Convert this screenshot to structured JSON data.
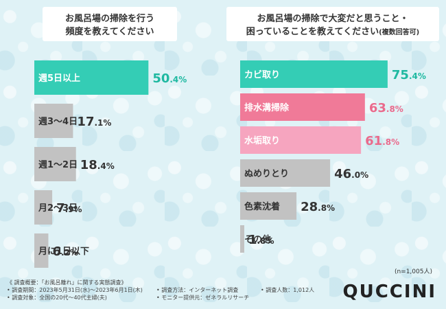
{
  "chart_data": [
    {
      "type": "bar",
      "title": "お風呂場の掃除を行う頻度を教えてください",
      "title_lines": [
        "お風呂場の掃除を行う",
        "頻度を教えてください"
      ],
      "categories": [
        "週5日以上",
        "週3〜4日",
        "週1〜2日",
        "月2〜3日",
        "月に1日以下"
      ],
      "values": [
        50.4,
        17.1,
        18.4,
        7.9,
        6.2
      ],
      "value_labels": [
        "50.4%",
        "17.1%",
        "18.4%",
        "7.9%",
        "6.2%"
      ],
      "unit": "%",
      "orientation": "horizontal",
      "highlight_colors": [
        "#34cdb5",
        "#c2c2c2",
        "#c2c2c2",
        "#c2c2c2",
        "#c2c2c2"
      ]
    },
    {
      "type": "bar",
      "title": "お風呂場の掃除で大変だと思うこと・困っていることを教えてください(複数回答可)",
      "title_lines": [
        "お風呂場の掃除で大変だと思うこと・",
        "困っていることを教えてください",
        "(複数回答可)"
      ],
      "categories": [
        "カビ取り",
        "排水溝掃除",
        "水垢取り",
        "ぬめりとり",
        "色素沈着",
        "その他"
      ],
      "values": [
        75.4,
        63.8,
        61.8,
        46.0,
        28.8,
        1.8
      ],
      "value_labels": [
        "75.4%",
        "63.8%",
        "61.8%",
        "46.0%",
        "28.8%",
        "1.8%"
      ],
      "unit": "%",
      "orientation": "horizontal",
      "highlight_colors": [
        "#34cdb5",
        "#f07a98",
        "#f6a5bf",
        "#c2c2c2",
        "#c2c2c2",
        "#c2c2c2"
      ],
      "sample": "(n=1,005人)"
    }
  ],
  "notes": {
    "col1": [
      "《 調査概要：「お風呂離れ」に関する実態調査》",
      "• 調査期間：2023年5月31日(水)～2023年6月1日(木)",
      "• 調査対象：全国の20代～40代主婦(夫)"
    ],
    "col2": [
      "• 調査方法：インターネット調査",
      "• モニター提供元：ゼネラルリサーチ"
    ],
    "col3": [
      "• 調査人数：1,012人"
    ]
  },
  "brand": "QUCCINI",
  "colors": {
    "background": "#dff2f6",
    "teal": "#34cdb5",
    "pink_dark": "#f07a98",
    "pink_light": "#f6a5bf",
    "gray": "#c2c2c2",
    "label_teal": "#1fb9a1",
    "label_pink": "#ea6a8c",
    "label_gray": "#333333"
  }
}
